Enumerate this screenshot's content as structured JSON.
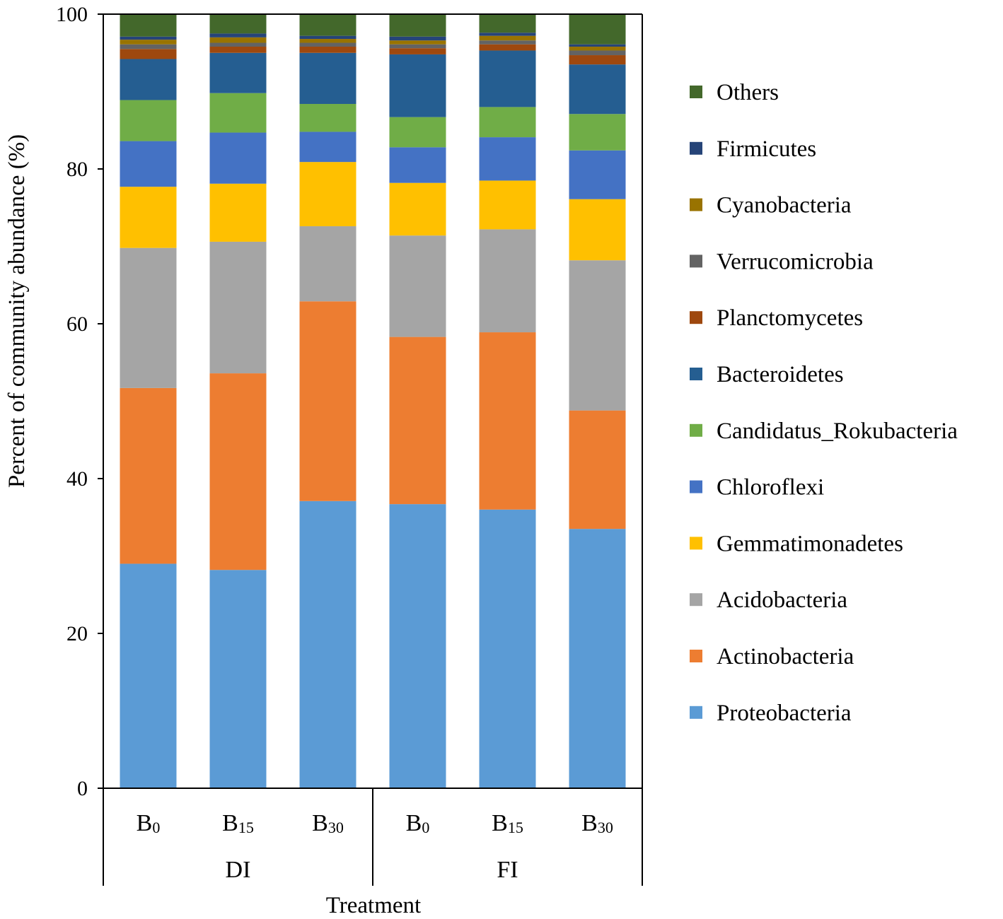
{
  "chart_data": {
    "type": "bar",
    "stacked": true,
    "title": "",
    "xlabel": "Treatment",
    "ylabel": "Percent of community abundance (%)",
    "ylim": [
      0,
      100
    ],
    "yticks": [
      0,
      20,
      40,
      60,
      80,
      100
    ],
    "grid": false,
    "legend_position": "right",
    "categories": [
      {
        "base": "B",
        "sub": "0",
        "group": "DI"
      },
      {
        "base": "B",
        "sub": "15",
        "group": "DI"
      },
      {
        "base": "B",
        "sub": "30",
        "group": "DI"
      },
      {
        "base": "B",
        "sub": "0",
        "group": "FI"
      },
      {
        "base": "B",
        "sub": "15",
        "group": "FI"
      },
      {
        "base": "B",
        "sub": "30",
        "group": "FI"
      }
    ],
    "groups": [
      "DI",
      "FI"
    ],
    "series": [
      {
        "name": "Proteobacteria",
        "color": "#5b9bd5",
        "values": [
          29.0,
          28.2,
          37.1,
          36.7,
          36.0,
          33.5
        ]
      },
      {
        "name": "Actinobacteria",
        "color": "#ed7d31",
        "values": [
          22.7,
          25.4,
          25.8,
          21.6,
          22.9,
          15.3
        ]
      },
      {
        "name": "Acidobacteria",
        "color": "#a5a5a5",
        "values": [
          18.1,
          17.0,
          9.7,
          13.1,
          13.3,
          19.4
        ]
      },
      {
        "name": "Gemmatimonadetes",
        "color": "#ffc000",
        "values": [
          7.9,
          7.5,
          8.3,
          6.8,
          6.3,
          7.9
        ]
      },
      {
        "name": "Chloroflexi",
        "color": "#4472c4",
        "values": [
          5.9,
          6.6,
          3.9,
          4.6,
          5.6,
          6.3
        ]
      },
      {
        "name": "Candidatus_Rokubacteria",
        "color": "#70ad47",
        "values": [
          5.3,
          5.1,
          3.6,
          3.9,
          3.9,
          4.7
        ]
      },
      {
        "name": "Bacteroidetes",
        "color": "#255e91",
        "values": [
          5.3,
          5.2,
          6.6,
          8.1,
          7.3,
          6.4
        ]
      },
      {
        "name": "Planctomycetes",
        "color": "#9e480e",
        "values": [
          1.3,
          0.8,
          0.8,
          0.8,
          0.8,
          1.2
        ]
      },
      {
        "name": "Verrucomicrobia",
        "color": "#636363",
        "values": [
          0.6,
          0.5,
          0.5,
          0.5,
          0.5,
          0.6
        ]
      },
      {
        "name": "Cyanobacteria",
        "color": "#997300",
        "values": [
          0.6,
          0.7,
          0.5,
          0.5,
          0.6,
          0.5
        ]
      },
      {
        "name": "Firmicutes",
        "color": "#264478",
        "values": [
          0.4,
          0.5,
          0.4,
          0.5,
          0.4,
          0.3
        ]
      },
      {
        "name": "Others",
        "color": "#43682b",
        "values": [
          2.9,
          2.5,
          2.8,
          2.9,
          2.4,
          3.9
        ]
      }
    ]
  }
}
